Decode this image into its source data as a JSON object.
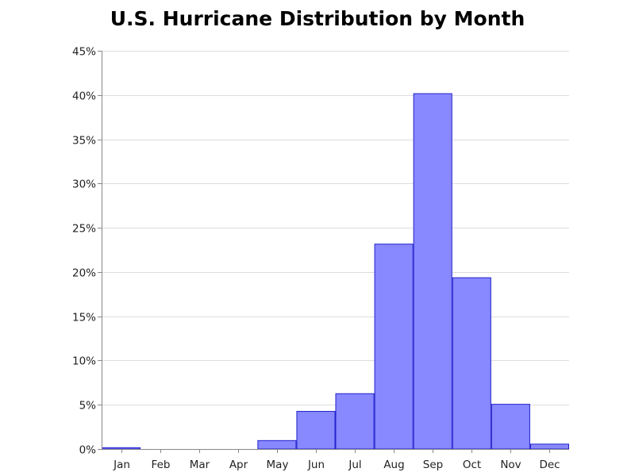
{
  "chart_data": {
    "type": "bar",
    "title": "U.S. Hurricane Distribution by Month",
    "xlabel": "",
    "ylabel": "",
    "categories": [
      "Jan",
      "Feb",
      "Mar",
      "Apr",
      "May",
      "Jun",
      "Jul",
      "Aug",
      "Sep",
      "Oct",
      "Nov",
      "Dec"
    ],
    "values": [
      0.2,
      0.0,
      0.0,
      0.0,
      1.0,
      4.3,
      6.3,
      23.2,
      40.2,
      19.4,
      5.1,
      0.6
    ],
    "ylim": [
      0,
      45
    ],
    "y_ticks": [
      0,
      5,
      10,
      15,
      20,
      25,
      30,
      35,
      40,
      45
    ],
    "y_tick_format": "{v}%",
    "grid": true,
    "legend": "none",
    "colors": {
      "bar_fill": "#8888ff",
      "bar_stroke": "#2222cc",
      "grid": "#dddddd",
      "axis": "#888888"
    }
  }
}
